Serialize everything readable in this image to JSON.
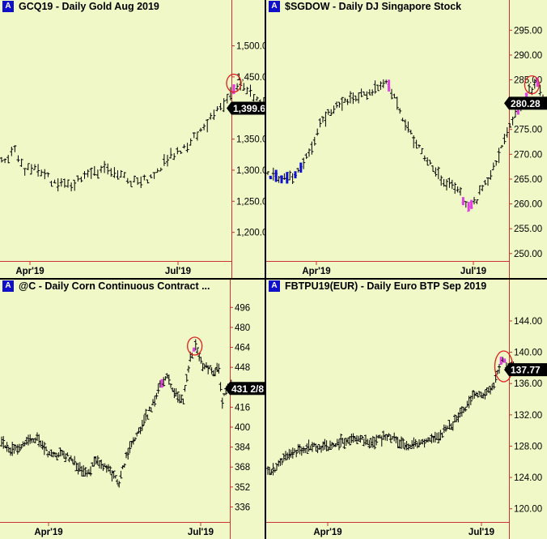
{
  "colors": {
    "background": "#f0f8c8",
    "bar": "#000000",
    "axis_line": "#cc3333",
    "up_highlight": "#e040e0",
    "down_highlight": "#1010d0",
    "circle": "#e02020",
    "badge": "#1010c8"
  },
  "chart_data": [
    {
      "type": "ohlc",
      "badge": "A",
      "title": "GCQ19 - Daily  Gold Aug 2019",
      "x_ticks": [
        "Apr'19",
        "Jul'19"
      ],
      "y_ticks": [
        "1,500.0",
        "1,450.0",
        "1,350.0",
        "1,300.0",
        "1,250.0",
        "1,200.0"
      ],
      "last_value": "1,399.6",
      "ylim": [
        1150,
        1545
      ],
      "trend": [
        [
          0,
          1314
        ],
        [
          8,
          1330
        ],
        [
          14,
          1300
        ],
        [
          22,
          1305
        ],
        [
          30,
          1282
        ],
        [
          40,
          1275
        ],
        [
          52,
          1292
        ],
        [
          62,
          1300
        ],
        [
          72,
          1290
        ],
        [
          80,
          1280
        ],
        [
          90,
          1285
        ],
        [
          100,
          1320
        ],
        [
          112,
          1340
        ],
        [
          122,
          1370
        ],
        [
          130,
          1395
        ],
        [
          138,
          1420
        ],
        [
          145,
          1440
        ],
        [
          152,
          1420
        ],
        [
          158,
          1410
        ],
        [
          164,
          1396
        ]
      ],
      "highlight_bars": [
        [
          140,
          1440
        ]
      ],
      "circle_at": [
        140,
        1440
      ]
    },
    {
      "type": "ohlc",
      "badge": "A",
      "title": "$SGDOW - Daily  DJ Singapore Stock",
      "x_ticks": [
        "Apr'19",
        "Jul'19"
      ],
      "y_ticks": [
        "295.00",
        "290.00",
        "285.00",
        "280.00",
        "275.00",
        "270.00",
        "265.00",
        "260.00",
        "255.00",
        "250.00"
      ],
      "last_value": "280.28",
      "ylim": [
        248,
        297.5
      ],
      "trend": [
        [
          0,
          266
        ],
        [
          10,
          265
        ],
        [
          20,
          266
        ],
        [
          30,
          270
        ],
        [
          38,
          276
        ],
        [
          46,
          279
        ],
        [
          58,
          281
        ],
        [
          68,
          282
        ],
        [
          78,
          283
        ],
        [
          86,
          284
        ],
        [
          92,
          282
        ],
        [
          100,
          276
        ],
        [
          110,
          271
        ],
        [
          120,
          267
        ],
        [
          130,
          264
        ],
        [
          140,
          262
        ],
        [
          146,
          259.5
        ],
        [
          152,
          261
        ],
        [
          160,
          265
        ],
        [
          168,
          270
        ],
        [
          176,
          276
        ],
        [
          184,
          280
        ],
        [
          190,
          283
        ],
        [
          196,
          284
        ],
        [
          200,
          281
        ],
        [
          204,
          280.3
        ]
      ],
      "highlight_bars": [
        [
          88,
          284
        ],
        [
          142,
          263
        ],
        [
          146,
          260.5
        ],
        [
          148,
          259.5
        ],
        [
          182,
          279
        ],
        [
          188,
          283
        ],
        [
          196,
          283.5
        ]
      ],
      "down_bars": [
        [
          2,
          265
        ],
        [
          6,
          266
        ],
        [
          10,
          264
        ],
        [
          14,
          266
        ],
        [
          20,
          266
        ],
        [
          24,
          265
        ]
      ],
      "circle_at": [
        192,
        284
      ]
    },
    {
      "type": "ohlc",
      "badge": "A",
      "title": "@C - Daily  Corn Continuous Contract  ...",
      "x_ticks": [
        "Apr'19",
        "Jul'19"
      ],
      "y_ticks": [
        "496",
        "480",
        "464",
        "448",
        "432",
        "416",
        "400",
        "384",
        "368",
        "352",
        "336"
      ],
      "last_value": "431 2/8",
      "ylim": [
        322,
        504
      ],
      "trend": [
        [
          0,
          387
        ],
        [
          10,
          380
        ],
        [
          20,
          385
        ],
        [
          30,
          390
        ],
        [
          40,
          392
        ],
        [
          52,
          380
        ],
        [
          62,
          378
        ],
        [
          72,
          377
        ],
        [
          84,
          370
        ],
        [
          96,
          364
        ],
        [
          106,
          373
        ],
        [
          116,
          368
        ],
        [
          124,
          363
        ],
        [
          132,
          356
        ],
        [
          140,
          376
        ],
        [
          150,
          390
        ],
        [
          160,
          405
        ],
        [
          170,
          418
        ],
        [
          178,
          433
        ],
        [
          186,
          440
        ],
        [
          196,
          426
        ],
        [
          204,
          422
        ],
        [
          212,
          455
        ],
        [
          218,
          466
        ],
        [
          226,
          450
        ],
        [
          236,
          445
        ],
        [
          244,
          445
        ],
        [
          248,
          420
        ],
        [
          254,
          433
        ],
        [
          260,
          433
        ]
      ],
      "highlight_bars": [
        [
          180,
          438
        ],
        [
          216,
          466
        ]
      ],
      "circle_at": [
        217,
        465
      ]
    },
    {
      "type": "ohlc",
      "badge": "A",
      "title": "FBTPU19(EUR) - Daily  Euro BTP Sep 2019",
      "x_ticks": [
        "Apr'19",
        "Jul'19"
      ],
      "y_ticks": [
        "144.00",
        "140.00",
        "136.00",
        "132.00",
        "128.00",
        "124.00",
        "120.00"
      ],
      "last_value": "137.77",
      "ylim": [
        118,
        147
      ],
      "trend": [
        [
          0,
          124.5
        ],
        [
          12,
          125.5
        ],
        [
          20,
          126.5
        ],
        [
          34,
          127.3
        ],
        [
          50,
          128.0
        ],
        [
          62,
          127.8
        ],
        [
          76,
          128.2
        ],
        [
          90,
          128.9
        ],
        [
          100,
          129.0
        ],
        [
          112,
          128.4
        ],
        [
          124,
          128.9
        ],
        [
          134,
          129.2
        ],
        [
          146,
          128.7
        ],
        [
          158,
          127.8
        ],
        [
          172,
          128.5
        ],
        [
          186,
          128.8
        ],
        [
          200,
          130.0
        ],
        [
          212,
          131.5
        ],
        [
          222,
          132.8
        ],
        [
          232,
          134.6
        ],
        [
          240,
          134.4
        ],
        [
          248,
          135.0
        ],
        [
          256,
          136.5
        ],
        [
          262,
          139.0
        ],
        [
          270,
          138.3
        ],
        [
          276,
          137.8
        ]
      ],
      "highlight_bars": [
        [
          262,
          136.8
        ],
        [
          266,
          139.5
        ]
      ],
      "circle_at": [
        265,
        138.2
      ]
    }
  ]
}
